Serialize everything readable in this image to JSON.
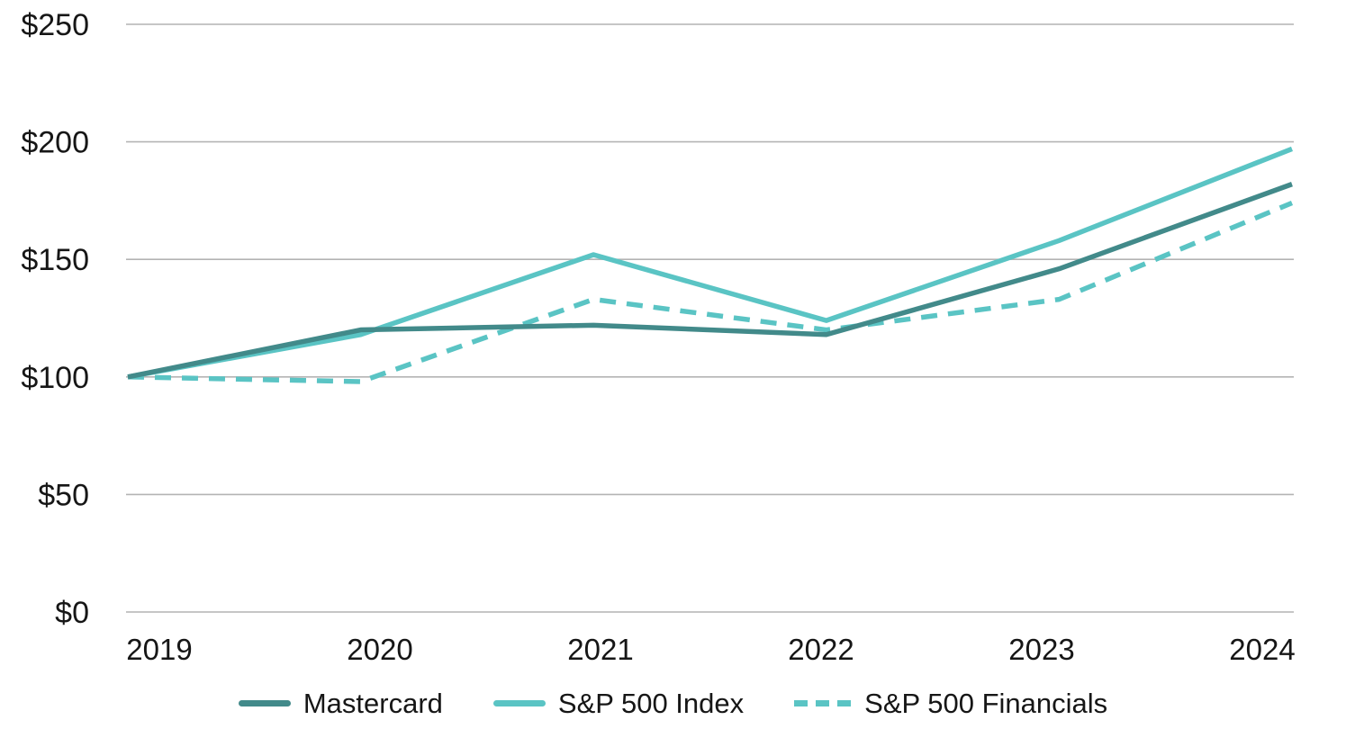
{
  "chart_data": {
    "type": "line",
    "title": "",
    "xlabel": "",
    "ylabel": "",
    "x_categories": [
      "2019",
      "2020",
      "2021",
      "2022",
      "2023",
      "2024"
    ],
    "y_ticks": [
      0,
      50,
      100,
      150,
      200,
      250
    ],
    "y_tick_labels": [
      "$0",
      "$50",
      "$100",
      "$150",
      "$200",
      "$250"
    ],
    "ylim": [
      0,
      250
    ],
    "grid": "horizontal-only",
    "legend_position": "bottom",
    "series": [
      {
        "name": "Mastercard",
        "style": "solid",
        "color": "#428A8A",
        "values": [
          100,
          120,
          122,
          118,
          146,
          182
        ]
      },
      {
        "name": "S&P 500 Index",
        "style": "solid",
        "color": "#5AC4C4",
        "values": [
          100,
          118,
          152,
          124,
          158,
          197
        ]
      },
      {
        "name": "S&P 500 Financials",
        "style": "dashed",
        "color": "#5AC4C4",
        "values": [
          100,
          98,
          133,
          120,
          133,
          174
        ]
      }
    ],
    "colors": {
      "grid": "#B4B4B4",
      "text": "#161616",
      "background": "#FFFFFF"
    }
  }
}
